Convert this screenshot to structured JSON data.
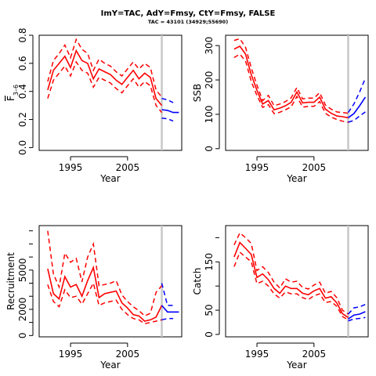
{
  "title": "ImY=TAC, AdY=Fmsy, CtY=Fmsy, FALSE",
  "subtitle": "TAC = 43101 (34929;55690)",
  "colors": {
    "historic": "#ff0000",
    "forecast": "#0000ff",
    "marker": "#c8c8c8"
  },
  "chart_data": [
    {
      "type": "line",
      "id": "fbar",
      "ylabel": "F̅ 3–6",
      "ylabel_main": "F",
      "ylabel_sub": "3–6",
      "xlabel": "Year",
      "xlim": [
        1989.5,
        2014.5
      ],
      "ylim": [
        -0.02,
        0.8
      ],
      "xticks": [
        1995,
        2005
      ],
      "yticks": [
        0.0,
        0.2,
        0.4,
        0.6,
        0.8
      ],
      "yticklabels": [
        "0.0",
        "0.2",
        "0.4",
        "0.6",
        "0.8"
      ],
      "marker_year": 2011,
      "historic": {
        "x": [
          1991,
          1992,
          1993,
          1994,
          1995,
          1996,
          1997,
          1998,
          1999,
          2000,
          2001,
          2002,
          2003,
          2004,
          2005,
          2006,
          2007,
          2008,
          2009,
          2010,
          2011
        ],
        "median": [
          0.41,
          0.55,
          0.6,
          0.65,
          0.57,
          0.69,
          0.62,
          0.6,
          0.49,
          0.56,
          0.54,
          0.52,
          0.48,
          0.45,
          0.5,
          0.55,
          0.49,
          0.53,
          0.5,
          0.35,
          0.3
        ],
        "upper": [
          0.47,
          0.62,
          0.67,
          0.73,
          0.64,
          0.77,
          0.7,
          0.67,
          0.55,
          0.63,
          0.6,
          0.58,
          0.54,
          0.51,
          0.56,
          0.61,
          0.56,
          0.6,
          0.57,
          0.41,
          0.36
        ],
        "lower": [
          0.35,
          0.48,
          0.53,
          0.58,
          0.51,
          0.61,
          0.55,
          0.53,
          0.43,
          0.5,
          0.48,
          0.46,
          0.42,
          0.39,
          0.44,
          0.49,
          0.43,
          0.47,
          0.44,
          0.3,
          0.25
        ]
      },
      "forecast": {
        "x": [
          2011,
          2012,
          2013,
          2014
        ],
        "median": [
          0.27,
          0.265,
          0.25,
          0.25
        ],
        "upper": [
          0.35,
          0.34,
          0.32,
          null
        ],
        "lower": [
          0.21,
          0.205,
          0.19,
          null
        ]
      }
    },
    {
      "type": "line",
      "id": "ssb",
      "ylabel": "SSB",
      "xlabel": "Year",
      "xlim": [
        1989.5,
        2014.5
      ],
      "ylim": [
        -5,
        330
      ],
      "xticks": [
        1995,
        2005
      ],
      "yticks": [
        0,
        100,
        200,
        300
      ],
      "yticklabels": [
        "0",
        "100",
        "200",
        "300"
      ],
      "marker_year": 2011,
      "historic": {
        "x": [
          1991,
          1992,
          1993,
          1994,
          1995,
          1996,
          1997,
          1998,
          1999,
          2000,
          2001,
          2002,
          2003,
          2004,
          2005,
          2006,
          2007,
          2008,
          2009,
          2010,
          2011
        ],
        "median": [
          290,
          298,
          275,
          215,
          170,
          130,
          140,
          113,
          118,
          125,
          135,
          165,
          133,
          135,
          135,
          150,
          115,
          103,
          95,
          93,
          90
        ],
        "upper": [
          315,
          320,
          295,
          235,
          185,
          140,
          155,
          125,
          130,
          137,
          148,
          178,
          145,
          147,
          147,
          163,
          127,
          115,
          107,
          105,
          103
        ],
        "lower": [
          265,
          275,
          255,
          195,
          155,
          120,
          128,
          102,
          106,
          113,
          122,
          152,
          121,
          123,
          123,
          137,
          103,
          92,
          85,
          80,
          77
        ]
      },
      "forecast": {
        "x": [
          2011,
          2012,
          2013,
          2014
        ],
        "median": [
          90,
          102,
          125,
          150
        ],
        "upper": [
          105,
          130,
          165,
          205
        ],
        "lower": [
          77,
          82,
          95,
          107
        ]
      }
    },
    {
      "type": "line",
      "id": "recruitment",
      "ylabel": "Recruitment",
      "xlabel": "Year",
      "xlim": [
        1989.5,
        2014.5
      ],
      "ylim": [
        -100,
        8400
      ],
      "xticks": [
        1995,
        2005
      ],
      "yticks": [
        0,
        2000,
        5000
      ],
      "yticklabels": [
        "0",
        "2000",
        "5000"
      ],
      "minor_yticks": [
        1000,
        3000,
        4000,
        6000,
        7000,
        8000
      ],
      "marker_year": 2011,
      "historic": {
        "x": [
          1991,
          1992,
          1993,
          1994,
          1995,
          1996,
          1997,
          1998,
          1999,
          2000,
          2001,
          2002,
          2003,
          2004,
          2005,
          2006,
          2007,
          2008,
          2009,
          2010,
          2011
        ],
        "median": [
          5100,
          3200,
          2800,
          4500,
          3700,
          3900,
          3000,
          4200,
          5200,
          2900,
          3200,
          3300,
          3400,
          2500,
          2100,
          1600,
          1500,
          1100,
          1200,
          1400,
          2300
        ],
        "upper": [
          8000,
          4700,
          3700,
          6300,
          5600,
          5900,
          4100,
          6000,
          7000,
          3800,
          3900,
          4000,
          4200,
          3100,
          2600,
          2200,
          1900,
          1500,
          1700,
          3300,
          3800
        ],
        "lower": [
          3900,
          2600,
          2200,
          3500,
          2900,
          3000,
          2400,
          3200,
          4000,
          2300,
          2500,
          2600,
          2700,
          2000,
          1600,
          1300,
          1200,
          900,
          1000,
          1100,
          1200
        ]
      },
      "forecast": {
        "x": [
          2011,
          2012,
          2013,
          2014
        ],
        "median": [
          2300,
          1800,
          1800,
          1800
        ],
        "upper": [
          4000,
          2300,
          2300,
          null
        ],
        "lower": [
          1200,
          1300,
          1300,
          null
        ]
      }
    },
    {
      "type": "line",
      "id": "catch",
      "ylabel": "Catch",
      "xlabel": "Year",
      "xlim": [
        1989.5,
        2014.5
      ],
      "ylim": [
        -5,
        225
      ],
      "xticks": [
        1995,
        2005
      ],
      "yticks": [
        0,
        50,
        150
      ],
      "yticklabels": [
        "0",
        "50",
        "150"
      ],
      "minor_yticks": [
        100,
        200
      ],
      "marker_year": 2011,
      "historic": {
        "x": [
          1991,
          1992,
          1993,
          1994,
          1995,
          1996,
          1997,
          1998,
          1999,
          2000,
          2001,
          2002,
          2003,
          2004,
          2005,
          2006,
          2007,
          2008,
          2009,
          2010,
          2011
        ],
        "median": [
          160,
          190,
          178,
          165,
          118,
          125,
          113,
          95,
          85,
          100,
          95,
          95,
          85,
          82,
          90,
          95,
          75,
          78,
          65,
          43,
          35
        ],
        "upper": [
          185,
          210,
          200,
          188,
          132,
          140,
          128,
          108,
          96,
          115,
          108,
          110,
          97,
          94,
          102,
          108,
          85,
          89,
          76,
          50,
          42
        ],
        "lower": [
          140,
          170,
          160,
          150,
          105,
          110,
          100,
          84,
          75,
          88,
          84,
          84,
          76,
          72,
          80,
          84,
          66,
          68,
          58,
          37,
          30
        ]
      },
      "forecast": {
        "x": [
          2011,
          2012,
          2013,
          2014
        ],
        "median": [
          32,
          40,
          42,
          47
        ],
        "upper": [
          42,
          55,
          57,
          62
        ],
        "lower": [
          28,
          32,
          33,
          35
        ]
      }
    }
  ]
}
